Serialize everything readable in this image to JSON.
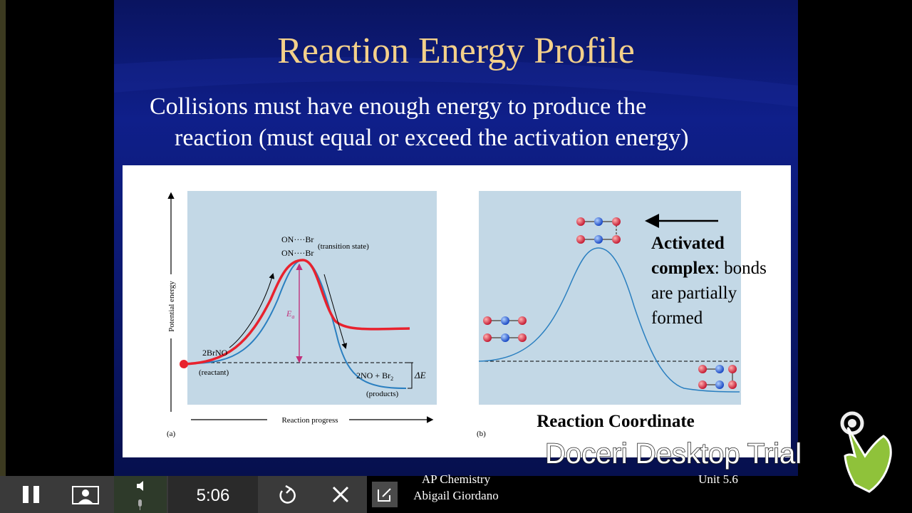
{
  "slide": {
    "title": "Reaction Energy Profile",
    "body": [
      "Collisions must have enough energy to produce the",
      "reaction (must equal or exceed the activation energy)"
    ],
    "footer": {
      "course": "AP Chemistry",
      "author": "Abigail Giordano",
      "unit": "Unit 5.6"
    }
  },
  "figure_a": {
    "y_label": "Potential energy",
    "x_label": "Reaction progress",
    "panel": "(a)",
    "transition_top": "ON····Br",
    "transition_bottom": "ON····Br",
    "transition_note": "(transition state)",
    "ea": "E",
    "ea_sub": "a",
    "reactant_formula": "2BrNO",
    "reactant_note": "(reactant)",
    "products_formula": "2NO + Br",
    "products_sub": "2",
    "products_note": "(products)",
    "delta_e": "ΔE"
  },
  "figure_b": {
    "panel": "(b)",
    "caption": "Reaction Coordinate",
    "annotation_bold": [
      "Activated",
      "complex"
    ],
    "annotation_text": [
      ": bonds",
      "are partially",
      "formed"
    ]
  },
  "toolbar": {
    "time": "5:06"
  },
  "watermark": "Doceri Desktop Trial"
}
